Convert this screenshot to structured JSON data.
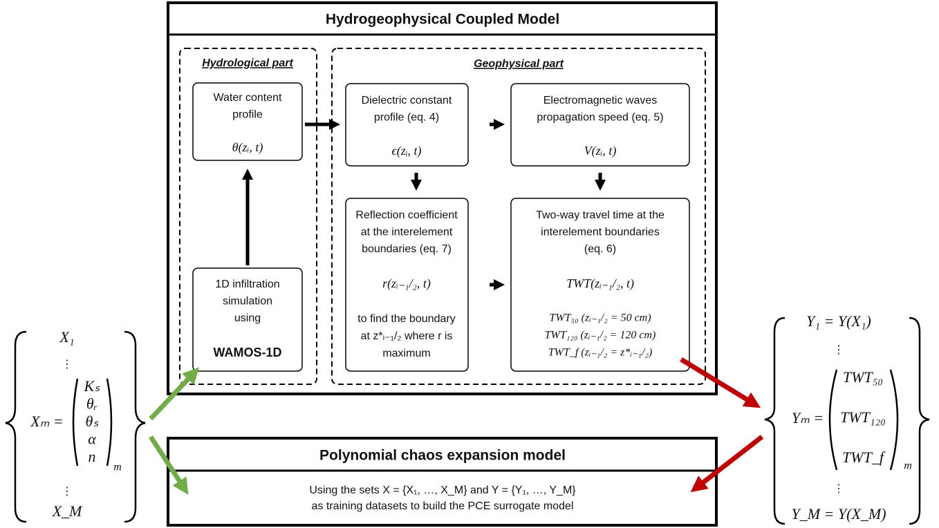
{
  "header": {
    "title": "Hydrogeophysical Coupled Model"
  },
  "hydrological_part": {
    "label": "Hydrological part",
    "nodes": [
      {
        "lines": [
          "Water content",
          "profile"
        ],
        "formula": "θ(zᵢ, t)"
      },
      {
        "lines": [
          "1D infiltration",
          "simulation",
          "using"
        ],
        "emphasis": "WAMOS-1D"
      }
    ]
  },
  "geophysical_part": {
    "label": "Geophysical part",
    "nodes": [
      {
        "lines": [
          "Dielectric constant",
          "profile (eq. 4)"
        ],
        "formula": "ϵ(zᵢ, t)"
      },
      {
        "lines": [
          "Electromagnetic waves",
          "propagation speed (eq. 5)"
        ],
        "formula": "V(zᵢ, t)"
      },
      {
        "lines": [
          "Reflection coefficient",
          "at the interelement",
          "boundaries (eq. 7)"
        ],
        "formula": "r(zᵢ₋₁/₂, t)",
        "notes": [
          "to find the boundary",
          "at z*ᵢ₋₁/₂ where r is",
          "maximum"
        ]
      },
      {
        "lines": [
          "Two-way travel time at the",
          "interelement boundaries",
          "(eq. 6)"
        ],
        "formula": "TWT(zᵢ₋₁/₂, t)",
        "notes": [
          "TWT₅₀ (zᵢ₋₁/₂ = 50 cm)",
          "TWT₁₂₀ (zᵢ₋₁/₂ = 120 cm)",
          "TWT_f (zᵢ₋₁/₂ = z*ᵢ₋₁/₂)"
        ]
      }
    ]
  },
  "pce_model": {
    "title": "Polynomial chaos expansion model",
    "body": [
      "Using the sets X = {X₁, …, X_M} and Y = {Y₁, …, Y_M}",
      "as training datasets to build the PCE surrogate model"
    ]
  },
  "input_set": {
    "first": "X₁",
    "ellipsis_top": "⋮",
    "member": "Xₘ =",
    "vector": [
      "Kₛ",
      "θᵣ",
      "θₛ",
      "α",
      "n"
    ],
    "vector_index": "m",
    "ellipsis_bottom": "⋮",
    "last": "X_M"
  },
  "output_set": {
    "first": "Y₁ = Y(X₁)",
    "ellipsis_top": "⋮",
    "member": "Yₘ =",
    "vector": [
      "TWT₅₀",
      "TWT₁₂₀",
      "TWT_f"
    ],
    "vector_index": "m",
    "ellipsis_bottom": "⋮",
    "last": "Y_M = Y(X_M)"
  }
}
